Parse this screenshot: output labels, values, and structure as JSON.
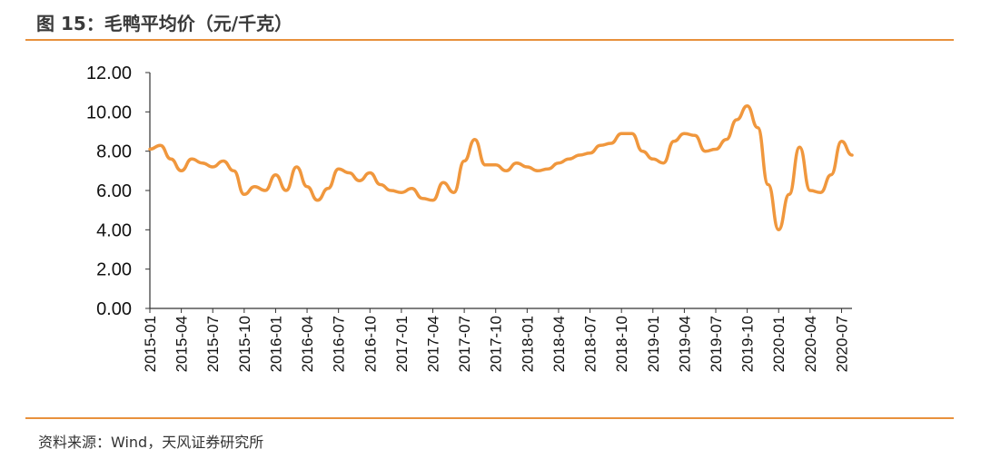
{
  "title": "图 15：毛鸭平均价（元/千克）",
  "source": "资料来源：Wind，天风证券研究所",
  "colors": {
    "line": "#f0973d",
    "rule": "#e8913c",
    "axis": "#333333"
  },
  "chart_data": {
    "type": "line",
    "title": "毛鸭平均价（元/千克）",
    "xlabel": "",
    "ylabel": "",
    "ylim": [
      0,
      12
    ],
    "yticks": [
      "0.00",
      "2.00",
      "4.00",
      "6.00",
      "8.00",
      "10.00",
      "12.00"
    ],
    "xticks": [
      "2015-01",
      "2015-04",
      "2015-07",
      "2015-10",
      "2016-01",
      "2016-04",
      "2016-07",
      "2016-10",
      "2017-01",
      "2017-04",
      "2017-07",
      "2017-10",
      "2018-01",
      "2018-04",
      "2018-07",
      "2018-10",
      "2019-01",
      "2019-04",
      "2019-07",
      "2019-10",
      "2020-01",
      "2020-04",
      "2020-07"
    ],
    "grid": false,
    "legend": "none",
    "series": [
      {
        "x": [
          "2015-01",
          "2015-02",
          "2015-03",
          "2015-04",
          "2015-05",
          "2015-06",
          "2015-07",
          "2015-08",
          "2015-09",
          "2015-10",
          "2015-11",
          "2015-12",
          "2016-01",
          "2016-02",
          "2016-03",
          "2016-04",
          "2016-05",
          "2016-06",
          "2016-07",
          "2016-08",
          "2016-09",
          "2016-10",
          "2016-11",
          "2016-12",
          "2017-01",
          "2017-02",
          "2017-03",
          "2017-04",
          "2017-05",
          "2017-06",
          "2017-07",
          "2017-08",
          "2017-09",
          "2017-10",
          "2017-11",
          "2017-12",
          "2018-01",
          "2018-02",
          "2018-03",
          "2018-04",
          "2018-05",
          "2018-06",
          "2018-07",
          "2018-08",
          "2018-09",
          "2018-10",
          "2018-11",
          "2018-12",
          "2019-01",
          "2019-02",
          "2019-03",
          "2019-04",
          "2019-05",
          "2019-06",
          "2019-07",
          "2019-08",
          "2019-09",
          "2019-10",
          "2019-11",
          "2019-12",
          "2020-01",
          "2020-02",
          "2020-03",
          "2020-04",
          "2020-05",
          "2020-06",
          "2020-07",
          "2020-08"
        ],
        "values": [
          8.1,
          8.3,
          7.6,
          7.0,
          7.6,
          7.4,
          7.2,
          7.5,
          7.0,
          5.8,
          6.2,
          6.0,
          6.8,
          6.0,
          7.2,
          6.2,
          5.5,
          6.1,
          7.1,
          6.9,
          6.5,
          6.9,
          6.3,
          6.0,
          5.9,
          6.1,
          5.6,
          5.5,
          6.4,
          5.9,
          7.5,
          8.6,
          7.3,
          7.3,
          7.0,
          7.4,
          7.2,
          7.0,
          7.1,
          7.4,
          7.6,
          7.8,
          7.9,
          8.3,
          8.4,
          8.9,
          8.9,
          8.0,
          7.6,
          7.4,
          8.5,
          8.9,
          8.8,
          8.0,
          8.1,
          8.6,
          9.6,
          10.3,
          9.2,
          6.3,
          4.0,
          5.8,
          8.2,
          6.0,
          5.9,
          6.8,
          8.5,
          7.8
        ]
      }
    ]
  }
}
